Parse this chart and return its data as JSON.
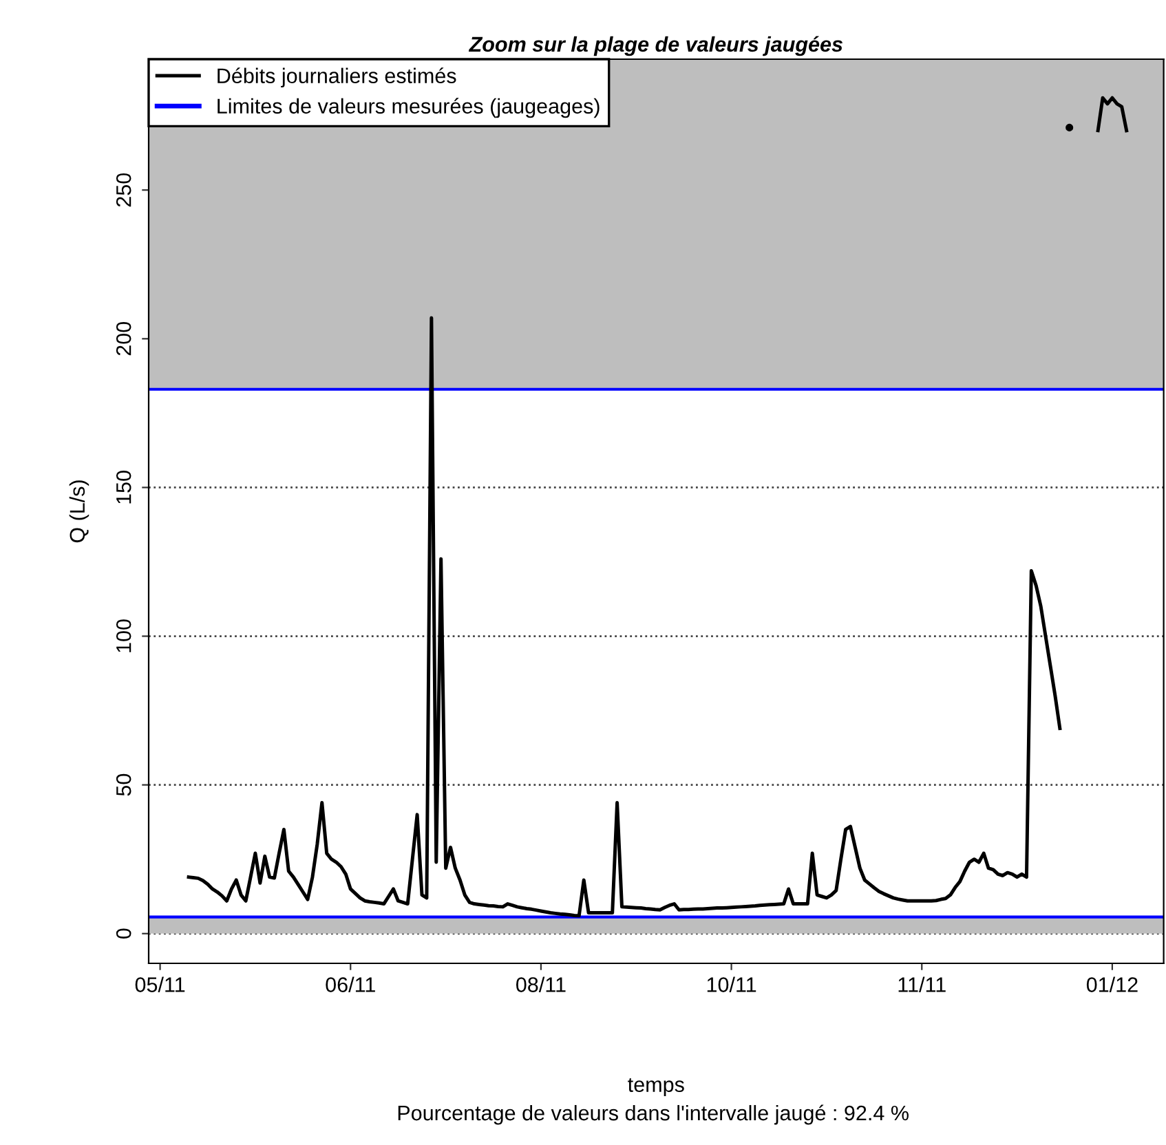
{
  "chart_data": {
    "type": "line",
    "title": "Zoom sur la plage de valeurs jaugées",
    "xlabel": "temps",
    "ylabel": "Q (L/s)",
    "annotations": [
      "Pourcentage de valeurs dans l'intervalle jaugé : 92.4 %"
    ],
    "categories": [
      "05/11",
      null,
      null,
      null,
      null,
      null,
      null,
      null,
      null,
      null,
      null,
      null,
      null,
      null,
      null,
      null,
      null,
      null,
      null,
      null,
      null,
      null,
      null,
      null,
      null,
      null,
      null,
      null,
      null,
      null,
      null,
      null,
      null,
      null,
      null,
      null,
      null,
      null,
      null,
      null,
      "06/11",
      null,
      null,
      null,
      null,
      null,
      null,
      null,
      null,
      null,
      null,
      null,
      null,
      null,
      null,
      null,
      null,
      null,
      null,
      null,
      null,
      null,
      null,
      null,
      null,
      null,
      null,
      null,
      null,
      null,
      null,
      null,
      null,
      null,
      null,
      null,
      null,
      null,
      null,
      null,
      "08/11",
      null,
      null,
      null,
      null,
      null,
      null,
      null,
      null,
      null,
      null,
      null,
      null,
      null,
      null,
      null,
      null,
      null,
      null,
      null,
      null,
      null,
      null,
      null,
      null,
      null,
      null,
      null,
      null,
      null,
      null,
      null,
      null,
      null,
      null,
      null,
      null,
      null,
      null,
      null,
      "10/11",
      null,
      null,
      null,
      null,
      null,
      null,
      null,
      null,
      null,
      null,
      null,
      null,
      null,
      null,
      null,
      null,
      null,
      null,
      null,
      null,
      null,
      null,
      null,
      null,
      null,
      null,
      null,
      null,
      null,
      null,
      null,
      null,
      null,
      null,
      null,
      null,
      null,
      null,
      null,
      "11/11",
      null,
      null,
      null,
      null,
      null,
      null,
      null,
      null,
      null,
      null,
      null,
      null,
      null,
      null,
      null,
      null,
      null,
      null,
      null,
      null,
      null,
      null,
      null,
      null,
      null,
      null,
      null,
      null,
      null,
      null,
      null,
      null,
      null,
      null,
      null,
      null,
      null,
      null,
      null,
      "01/12",
      null,
      null,
      null,
      null,
      null,
      null,
      null,
      null,
      null,
      null
    ],
    "series": [
      {
        "name": "Débits journaliers estimés",
        "color": "#000000",
        "values": [
          null,
          null,
          null,
          null,
          null,
          null,
          19,
          18.8,
          18.6,
          17.8,
          16.6,
          15,
          14,
          12.7,
          11,
          15,
          18,
          13,
          11,
          19,
          27,
          17,
          26,
          19,
          18.7,
          27,
          35,
          21,
          19,
          16.5,
          14,
          11.5,
          19,
          30,
          44,
          27,
          25,
          24,
          22.5,
          20,
          15,
          13.5,
          12,
          11,
          10.7,
          10.5,
          10.3,
          10,
          12.5,
          15,
          11,
          10.5,
          10,
          25,
          40,
          13,
          12,
          207,
          24,
          126,
          22,
          29,
          22,
          18,
          13,
          10.5,
          10,
          9.8,
          9.6,
          9.4,
          9.3,
          9.1,
          9,
          10,
          9.5,
          9,
          8.7,
          8.4,
          8.2,
          7.9,
          7.6,
          7.3,
          7,
          6.8,
          6.6,
          6.5,
          6.3,
          6.1,
          6,
          18,
          7,
          7,
          7,
          7,
          7,
          7,
          44,
          9,
          8.9,
          8.8,
          8.7,
          8.6,
          8.4,
          8.3,
          8.1,
          8,
          8.8,
          9.5,
          10,
          8,
          8.1,
          8.1,
          8.2,
          8.3,
          8.3,
          8.4,
          8.5,
          8.6,
          8.6,
          8.7,
          8.8,
          8.9,
          9,
          9.1,
          9.2,
          9.3,
          9.5,
          9.6,
          9.7,
          9.8,
          9.9,
          10,
          15,
          10,
          10,
          10,
          10,
          27,
          13,
          12.5,
          12,
          13,
          14.5,
          25,
          35,
          36,
          29,
          22,
          18,
          16.7,
          15.4,
          14.2,
          13.4,
          12.7,
          12,
          11.6,
          11.3,
          11,
          11,
          11,
          11,
          11,
          11,
          11.1,
          11.5,
          11.8,
          13,
          15.5,
          17.5,
          21,
          24,
          25,
          24,
          27,
          22,
          21.5,
          20,
          19.5,
          20.5,
          20,
          19,
          20,
          19,
          122,
          117,
          110,
          100,
          90,
          80,
          69,
          null,
          271,
          null,
          null,
          null,
          null,
          null,
          270,
          281,
          279,
          281,
          279,
          278,
          270,
          null,
          null,
          null,
          null,
          null,
          null,
          null
        ]
      }
    ],
    "ref_lines": [
      {
        "axis": "y",
        "value": 5.6,
        "label": "Limites de valeurs mesurées (jaugeages)",
        "color": "#0000ff"
      },
      {
        "axis": "y",
        "value": 183,
        "color": "#0000ff"
      }
    ],
    "bands": [
      {
        "axis": "y",
        "from": 0,
        "to": 5.6,
        "color": "#bebebe"
      },
      {
        "axis": "y",
        "from": 183,
        "to": 294,
        "color": "#bebebe"
      }
    ],
    "ylim": [
      -10,
      294
    ],
    "yticks": [
      0,
      50,
      100,
      150,
      200,
      250
    ],
    "grid": "y",
    "legend": "top left",
    "line_style": "solid",
    "marker": "none"
  }
}
